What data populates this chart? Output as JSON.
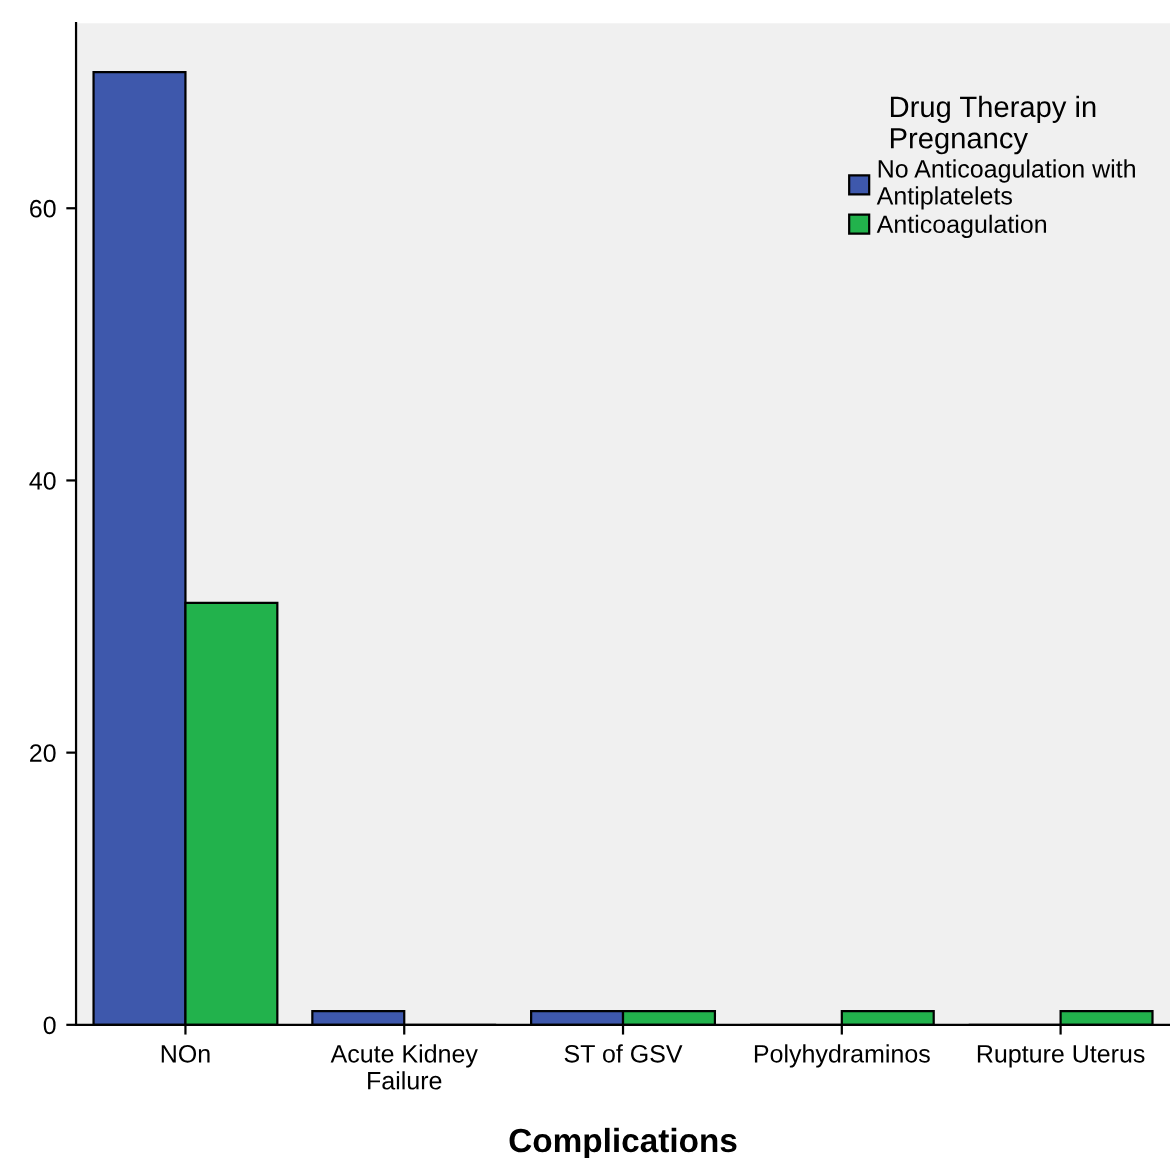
{
  "chart_data": {
    "type": "bar",
    "xlabel": "Complications",
    "legend_title": "Drug Therapy in\nPregnancy",
    "categories": [
      "NOn",
      "Acute Kidney\nFailure",
      "ST of GSV",
      "Polyhydraminos",
      "Rupture Uterus"
    ],
    "series": [
      {
        "name": "No Anticoagulation with\nAntiplatelets",
        "color": "#3e58ac",
        "values": [
          70,
          1,
          1,
          0,
          0
        ]
      },
      {
        "name": "Anticoagulation",
        "color": "#22b24c",
        "values": [
          31,
          0,
          1,
          1,
          1
        ]
      }
    ],
    "ylim": [
      0,
      73.6
    ],
    "yticks": [
      0,
      20,
      40,
      60
    ],
    "grid": false,
    "legend": "top right"
  }
}
